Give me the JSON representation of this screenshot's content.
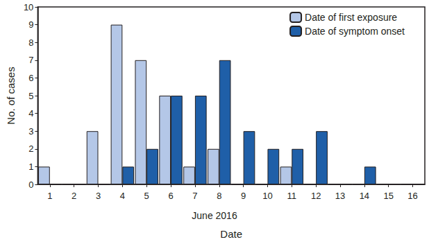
{
  "chart_data": {
    "type": "bar",
    "categories": [
      "1",
      "2",
      "3",
      "4",
      "5",
      "6",
      "7",
      "8",
      "9",
      "10",
      "11",
      "12",
      "13",
      "14",
      "15",
      "16"
    ],
    "series": [
      {
        "name": "Date of first exposure",
        "color": "#b4c7e7",
        "values": [
          1,
          0,
          3,
          9,
          7,
          5,
          1,
          2,
          0,
          0,
          1,
          0,
          0,
          0,
          0,
          0
        ]
      },
      {
        "name": "Date of symptom onset",
        "color": "#1f5fa8",
        "values": [
          0,
          0,
          0,
          1,
          2,
          5,
          5,
          7,
          3,
          2,
          2,
          3,
          0,
          1,
          0,
          0
        ]
      }
    ],
    "x_label": "Date",
    "y_label": "No. of cases",
    "annotations": [
      "June 2016"
    ],
    "ylim": [
      0,
      10
    ],
    "yticks": [
      0,
      1,
      2,
      3,
      4,
      5,
      6,
      7,
      8,
      9,
      10
    ],
    "grid": false,
    "legend": "upper right"
  }
}
